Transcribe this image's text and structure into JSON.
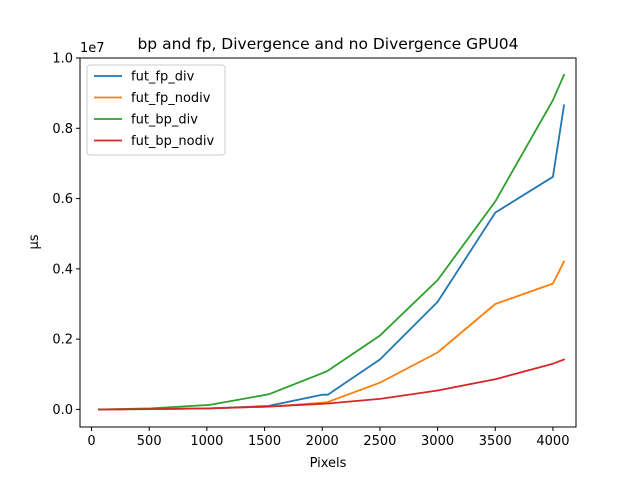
{
  "chart_data": {
    "type": "line",
    "title": "bp and fp, Divergence and no Divergence GPU04",
    "xlabel": "Pixels",
    "ylabel": "μs",
    "y_offset_label": "1e7",
    "y_scale": 10000000,
    "xlim": [
      -100,
      4200
    ],
    "ylim": [
      -0.05,
      1.0
    ],
    "x_ticks": [
      0,
      500,
      1000,
      1500,
      2000,
      2500,
      3000,
      3500,
      4000
    ],
    "y_ticks": [
      0.0,
      0.2,
      0.4,
      0.6,
      0.8,
      1.0
    ],
    "y_tick_labels": [
      "0.0",
      "0.2",
      "0.4",
      "0.6",
      "0.8",
      "1.0"
    ],
    "grid": false,
    "legend_position": "upper-left",
    "x": [
      64,
      128,
      256,
      512,
      1024,
      1536,
      2000,
      2048,
      2500,
      3000,
      3500,
      4000,
      4096
    ],
    "series": [
      {
        "name": "fut_fp_div",
        "color": "#1f77b4",
        "values": [
          0.0,
          0.0,
          0.0003,
          0.001,
          0.003,
          0.01,
          0.042,
          0.042,
          0.142,
          0.306,
          0.56,
          0.662,
          0.865
        ]
      },
      {
        "name": "fut_fp_nodiv",
        "color": "#ff7f0e",
        "values": [
          0.0,
          0.0,
          0.0003,
          0.001,
          0.003,
          0.008,
          0.019,
          0.021,
          0.076,
          0.162,
          0.3,
          0.358,
          0.421
        ]
      },
      {
        "name": "fut_bp_div",
        "color": "#2ca02c",
        "values": [
          0.0,
          0.0,
          0.001,
          0.003,
          0.013,
          0.043,
          0.103,
          0.11,
          0.21,
          0.368,
          0.592,
          0.88,
          0.952
        ]
      },
      {
        "name": "fut_bp_nodiv",
        "color": "#d62728",
        "values": [
          0.0,
          0.0,
          0.0003,
          0.001,
          0.003,
          0.008,
          0.016,
          0.017,
          0.03,
          0.054,
          0.086,
          0.13,
          0.142
        ]
      }
    ]
  }
}
